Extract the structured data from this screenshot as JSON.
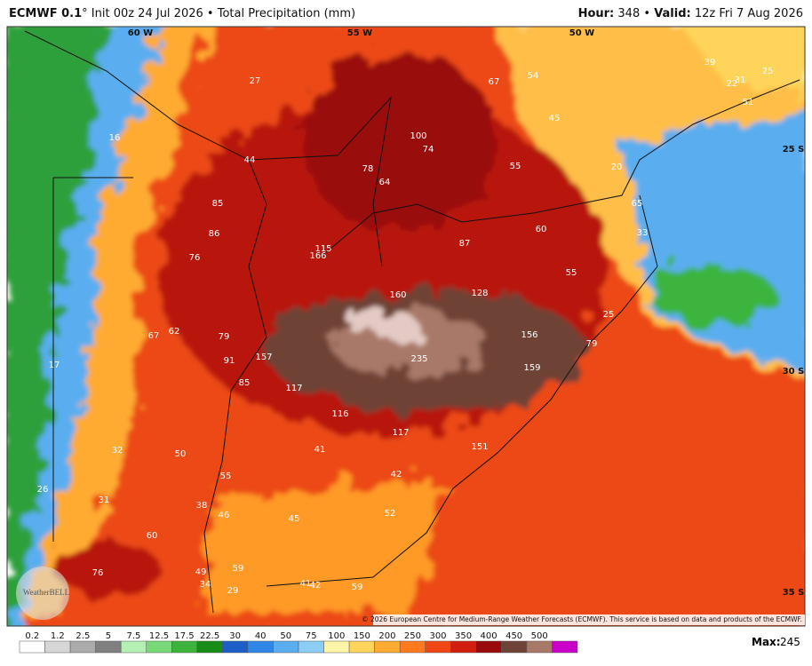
{
  "header": {
    "model": "ECMWF 0.1",
    "init": "° Init 00z 24 Jul 2026",
    "separator": "•",
    "product": "Total Precipitation (mm)",
    "hour_label": "Hour:",
    "hour": "348",
    "valid_label": "Valid:",
    "valid": "12z Fri 7 Aug 2026"
  },
  "map": {
    "grid_labels": [
      "60 W",
      "55 W",
      "50 W",
      "25 S",
      "30 S",
      "35 S"
    ],
    "values": [
      27,
      67,
      54,
      39,
      25,
      22,
      31,
      51,
      100,
      74,
      45,
      16,
      44,
      78,
      64,
      55,
      20,
      65,
      85,
      86,
      115,
      166,
      87,
      60,
      33,
      76,
      160,
      128,
      55,
      25,
      67,
      62,
      79,
      157,
      156,
      79,
      17,
      91,
      235,
      159,
      85,
      117,
      116,
      117,
      151,
      32,
      50,
      41,
      55,
      42,
      26,
      31,
      38,
      46,
      45,
      52,
      60,
      59,
      49,
      76,
      34,
      29,
      41,
      42,
      59
    ],
    "logo": "WeatherBELL",
    "copyright": "© 2026 European Centre for Medium-Range Weather Forecasts (ECMWF). This service is based on data and products of the ECMWF."
  },
  "colorbar": {
    "ticks": [
      0.2,
      1.2,
      2.5,
      5,
      7.5,
      12.5,
      17.5,
      22.5,
      30,
      40,
      50,
      75,
      100,
      150,
      200,
      250,
      300,
      350,
      400,
      450,
      500
    ],
    "colors": [
      "#ffffff",
      "#d6d6d6",
      "#ababab",
      "#808080",
      "#b4f0b4",
      "#78d878",
      "#3cb43c",
      "#178c17",
      "#1c5fc8",
      "#2f86e6",
      "#5aaef0",
      "#8ccdf5",
      "#fff4a8",
      "#ffd45a",
      "#ffab32",
      "#ff7a1e",
      "#f04614",
      "#d21e0f",
      "#9a0a0a",
      "#6e4236",
      "#a87868",
      "#c800c8"
    ]
  },
  "max": {
    "label": "Max:",
    "value": 245
  }
}
